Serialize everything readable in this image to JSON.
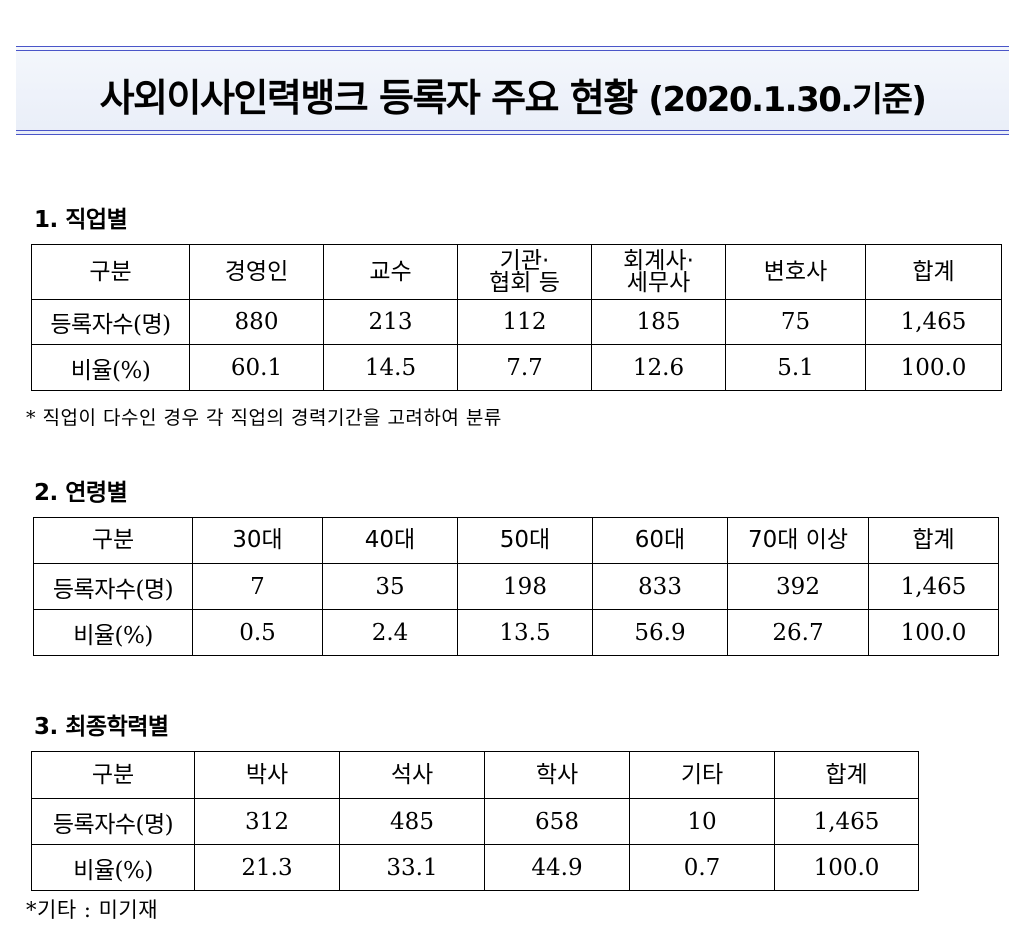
{
  "title": {
    "main": "사외이사인력뱅크 등록자 주요 현황",
    "date": "(2020.1.30.기준)"
  },
  "sections": [
    {
      "heading": "1. 직업별",
      "row_labels": [
        "구분",
        "등록자수(명)",
        "비율(%)"
      ],
      "headers": [
        {
          "line1": "경영인",
          "line2": ""
        },
        {
          "line1": "교수",
          "line2": ""
        },
        {
          "line1": "기관·",
          "line2": "협회 등"
        },
        {
          "line1": "회계사·",
          "line2": "세무사"
        },
        {
          "line1": "변호사",
          "line2": ""
        },
        {
          "line1": "합계",
          "line2": ""
        }
      ],
      "counts": [
        "880",
        "213",
        "112",
        "185",
        "75",
        "1,465"
      ],
      "ratios": [
        "60.1",
        "14.5",
        "7.7",
        "12.6",
        "5.1",
        "100.0"
      ],
      "footnote": "* 직업이 다수인 경우 각 직업의 경력기간을 고려하여 분류"
    },
    {
      "heading": "2. 연령별",
      "row_labels": [
        "구분",
        "등록자수(명)",
        "비율(%)"
      ],
      "headers": [
        "30대",
        "40대",
        "50대",
        "60대",
        "70대 이상",
        "합계"
      ],
      "counts": [
        "7",
        "35",
        "198",
        "833",
        "392",
        "1,465"
      ],
      "ratios": [
        "0.5",
        "2.4",
        "13.5",
        "56.9",
        "26.7",
        "100.0"
      ]
    },
    {
      "heading": "3. 최종학력별",
      "row_labels": [
        "구분",
        "등록자수(명)",
        "비율(%)"
      ],
      "headers": [
        "박사",
        "석사",
        "학사",
        "기타",
        "합계"
      ],
      "counts": [
        "312",
        "485",
        "658",
        "10",
        "1,465"
      ],
      "ratios": [
        "21.3",
        "33.1",
        "44.9",
        "0.7",
        "100.0"
      ],
      "footnote": "*기타 : 미기재"
    }
  ]
}
